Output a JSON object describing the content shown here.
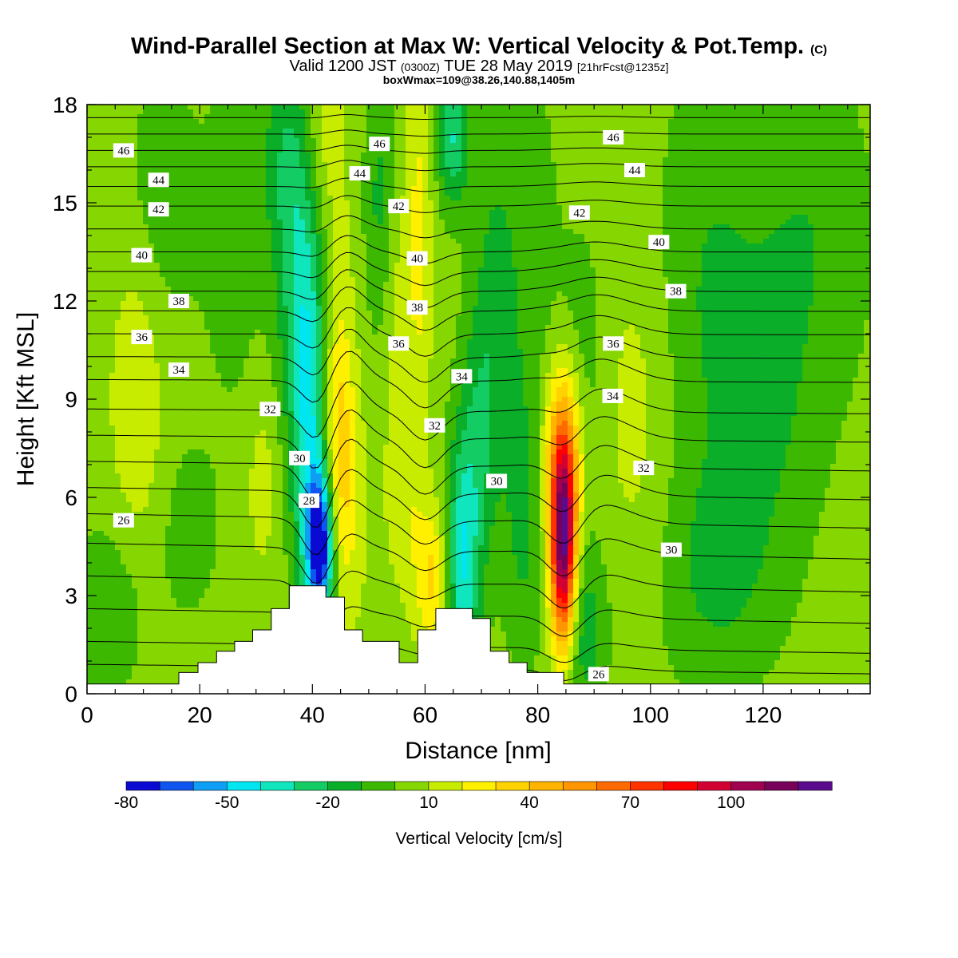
{
  "title": {
    "main": "Wind-Parallel Section at Max W: Vertical Velocity & Pot.Temp.",
    "main_suffix": "(C)",
    "valid_a": "Valid 1200 JST",
    "valid_b": "(0300Z)",
    "valid_c": "TUE 28 May 2019",
    "valid_d": "[21hrFcst@1235z]",
    "box": "boxWmax=109@38.26,140.88,1405m"
  },
  "chart_data": {
    "type": "heatmap",
    "xlabel": "Distance [nm]",
    "ylabel": "Height [Kft MSL]",
    "xlim": [
      0,
      139
    ],
    "ylim": [
      0,
      18
    ],
    "x_ticks": [
      0,
      20,
      40,
      60,
      80,
      100,
      120
    ],
    "y_ticks": [
      0,
      3,
      6,
      9,
      12,
      15,
      18
    ],
    "colorbar": {
      "label": "Vertical Velocity [cm/s]",
      "levels": [
        -80,
        -70,
        -60,
        -50,
        -40,
        -30,
        -20,
        -10,
        0,
        10,
        20,
        30,
        40,
        50,
        60,
        70,
        80,
        90,
        100,
        110,
        120
      ],
      "tick_labels": [
        "-80",
        "-50",
        "-20",
        "10",
        "40",
        "70",
        "100"
      ],
      "tick_values": [
        -80,
        -50,
        -20,
        10,
        40,
        70,
        100
      ],
      "colors": [
        "#0a0ad2",
        "#0f55f0",
        "#0f9ef5",
        "#00e6f0",
        "#10e6be",
        "#14cc64",
        "#0aae28",
        "#3cb800",
        "#86d602",
        "#c8ec00",
        "#fff000",
        "#ffd200",
        "#ffb400",
        "#ff9600",
        "#ff6a00",
        "#ff3200",
        "#ff0000",
        "#d20032",
        "#a00050",
        "#78005a",
        "#5a0a8c"
      ]
    },
    "background_level_cm_s": 5,
    "w_features": [
      {
        "x": 41.5,
        "z": 4.5,
        "w": -78,
        "sx": 1.6,
        "sz": 1.6
      },
      {
        "x": 39.5,
        "z": 7.5,
        "w": -40,
        "sx": 2.2,
        "sz": 4.2
      },
      {
        "x": 37.5,
        "z": 12.5,
        "w": -25,
        "sx": 2.8,
        "sz": 3.5
      },
      {
        "x": 35,
        "z": 16.5,
        "w": -18,
        "sx": 3,
        "sz": 2.5
      },
      {
        "x": 44.5,
        "z": 7.8,
        "w": 22,
        "sx": 2,
        "sz": 2.5
      },
      {
        "x": 46,
        "z": 5.5,
        "w": 14,
        "sx": 2.5,
        "sz": 2.5
      },
      {
        "x": 45,
        "z": 11.5,
        "w": 8,
        "sx": 2,
        "sz": 3
      },
      {
        "x": 42,
        "z": 17,
        "w": 12,
        "sx": 2.5,
        "sz": 2
      },
      {
        "x": 61.5,
        "z": 3.5,
        "w": 28,
        "sx": 2.3,
        "sz": 1.5
      },
      {
        "x": 56.5,
        "z": 6,
        "w": 12,
        "sx": 2.5,
        "sz": 2
      },
      {
        "x": 59,
        "z": 14,
        "w": 18,
        "sx": 1.5,
        "sz": 4
      },
      {
        "x": 55,
        "z": 12,
        "w": 10,
        "sx": 2,
        "sz": 3
      },
      {
        "x": 66.5,
        "z": 3.8,
        "w": -42,
        "sx": 2.1,
        "sz": 2.5
      },
      {
        "x": 69,
        "z": 7.5,
        "w": -20,
        "sx": 2.5,
        "sz": 3
      },
      {
        "x": 65,
        "z": 17,
        "w": -35,
        "sx": 2,
        "sz": 1.5
      },
      {
        "x": 72,
        "z": 11.5,
        "w": -15,
        "sx": 2.5,
        "sz": 4
      },
      {
        "x": 52,
        "z": 15,
        "w": -18,
        "sx": 2,
        "sz": 3
      },
      {
        "x": 78,
        "z": 13,
        "w": -12,
        "sx": 4,
        "sz": 5
      },
      {
        "x": 77.5,
        "z": 5,
        "w": -15,
        "sx": 2.5,
        "sz": 3
      },
      {
        "x": 84.5,
        "z": 4.5,
        "w": 115,
        "sx": 1.6,
        "sz": 2.2
      },
      {
        "x": 84.5,
        "z": 7.5,
        "w": 40,
        "sx": 2.5,
        "sz": 2
      },
      {
        "x": 88,
        "z": 2,
        "w": -22,
        "sx": 3,
        "sz": 2
      },
      {
        "x": 88,
        "z": 10,
        "w": -12,
        "sx": 3,
        "sz": 3
      },
      {
        "x": 110,
        "z": 12,
        "w": -15,
        "sx": 7,
        "sz": 5
      },
      {
        "x": 112,
        "z": 3.5,
        "w": -15,
        "sx": 8,
        "sz": 2.5
      },
      {
        "x": 128,
        "z": 14,
        "w": -14,
        "sx": 8,
        "sz": 4
      },
      {
        "x": 122,
        "z": 8,
        "w": -10,
        "sx": 6,
        "sz": 3
      },
      {
        "x": 9,
        "z": 10,
        "w": 14,
        "sx": 3.5,
        "sz": 4.5
      },
      {
        "x": 12,
        "z": 15,
        "w": -14,
        "sx": 5,
        "sz": 3
      },
      {
        "x": 4,
        "z": 2.5,
        "w": -14,
        "sx": 5,
        "sz": 2
      },
      {
        "x": 18,
        "z": 5,
        "w": -10,
        "sx": 4,
        "sz": 2
      },
      {
        "x": 26,
        "z": 14,
        "w": -10,
        "sx": 4,
        "sz": 4
      },
      {
        "x": 31,
        "z": 6.5,
        "w": 10,
        "sx": 2,
        "sz": 2
      },
      {
        "x": 98,
        "z": 8.5,
        "w": 10,
        "sx": 5,
        "sz": 4
      }
    ],
    "theta_contours": {
      "units": "C",
      "baselines_kft": [
        {
          "theta": 24,
          "z": 0.9
        },
        {
          "theta": 25,
          "z": 1.6
        },
        {
          "theta": 26,
          "z": 2.6
        },
        {
          "theta": 27,
          "z": 3.6
        },
        {
          "theta": 28,
          "z": 4.6
        },
        {
          "theta": 29,
          "z": 5.5
        },
        {
          "theta": 30,
          "z": 6.3
        },
        {
          "theta": 31,
          "z": 7.1
        },
        {
          "theta": 32,
          "z": 7.9
        },
        {
          "theta": 33,
          "z": 8.7
        },
        {
          "theta": 34,
          "z": 9.6
        },
        {
          "theta": 35,
          "z": 10.3
        },
        {
          "theta": 36,
          "z": 11.0
        },
        {
          "theta": 37,
          "z": 11.7
        },
        {
          "theta": 38,
          "z": 12.3
        },
        {
          "theta": 39,
          "z": 12.9
        },
        {
          "theta": 40,
          "z": 13.5
        },
        {
          "theta": 41,
          "z": 14.2
        },
        {
          "theta": 42,
          "z": 14.9
        },
        {
          "theta": 43,
          "z": 15.5
        },
        {
          "theta": 44,
          "z": 16.1
        },
        {
          "theta": 45,
          "z": 16.6
        },
        {
          "theta": 46,
          "z": 17.1
        },
        {
          "theta": 47,
          "z": 17.6
        }
      ],
      "labels": [
        {
          "text": "46",
          "x": 6.5,
          "z": 16.6
        },
        {
          "text": "44",
          "x": 12.7,
          "z": 15.7
        },
        {
          "text": "42",
          "x": 12.7,
          "z": 14.8
        },
        {
          "text": "40",
          "x": 9.7,
          "z": 13.4
        },
        {
          "text": "38",
          "x": 16.3,
          "z": 12.0
        },
        {
          "text": "36",
          "x": 9.7,
          "z": 10.9
        },
        {
          "text": "34",
          "x": 16.3,
          "z": 9.9
        },
        {
          "text": "32",
          "x": 32.5,
          "z": 8.7
        },
        {
          "text": "30",
          "x": 37.7,
          "z": 7.2
        },
        {
          "text": "28",
          "x": 39.4,
          "z": 5.9
        },
        {
          "text": "26",
          "x": 6.5,
          "z": 5.3
        },
        {
          "text": "46",
          "x": 51.9,
          "z": 16.8
        },
        {
          "text": "44",
          "x": 48.4,
          "z": 15.9
        },
        {
          "text": "42",
          "x": 55.3,
          "z": 14.9
        },
        {
          "text": "40",
          "x": 58.6,
          "z": 13.3
        },
        {
          "text": "38",
          "x": 58.6,
          "z": 11.8
        },
        {
          "text": "36",
          "x": 55.3,
          "z": 10.7
        },
        {
          "text": "34",
          "x": 66.5,
          "z": 9.7
        },
        {
          "text": "32",
          "x": 61.7,
          "z": 8.2
        },
        {
          "text": "30",
          "x": 72.7,
          "z": 6.5
        },
        {
          "text": "46",
          "x": 93.4,
          "z": 17.0
        },
        {
          "text": "44",
          "x": 97.2,
          "z": 16.0
        },
        {
          "text": "42",
          "x": 87.4,
          "z": 14.7
        },
        {
          "text": "40",
          "x": 101.5,
          "z": 13.8
        },
        {
          "text": "38",
          "x": 104.5,
          "z": 12.3
        },
        {
          "text": "36",
          "x": 93.4,
          "z": 10.7
        },
        {
          "text": "34",
          "x": 93.3,
          "z": 9.1
        },
        {
          "text": "32",
          "x": 98.8,
          "z": 6.9
        },
        {
          "text": "30",
          "x": 103.7,
          "z": 4.4
        },
        {
          "text": "26",
          "x": 90.8,
          "z": 0.6
        }
      ]
    },
    "terrain_kft": [
      [
        0,
        0.3
      ],
      [
        16.3,
        0.3
      ],
      [
        16.3,
        0.65
      ],
      [
        19.7,
        0.65
      ],
      [
        19.7,
        0.95
      ],
      [
        23,
        0.95
      ],
      [
        23,
        1.3
      ],
      [
        26.2,
        1.3
      ],
      [
        26.2,
        1.6
      ],
      [
        29.4,
        1.6
      ],
      [
        29.4,
        1.95
      ],
      [
        32.7,
        1.95
      ],
      [
        32.7,
        2.6
      ],
      [
        35.9,
        2.6
      ],
      [
        35.9,
        3.3
      ],
      [
        42.4,
        3.3
      ],
      [
        42.4,
        2.95
      ],
      [
        45.7,
        2.95
      ],
      [
        45.7,
        1.95
      ],
      [
        48.9,
        1.95
      ],
      [
        48.9,
        1.6
      ],
      [
        55.4,
        1.6
      ],
      [
        55.4,
        0.95
      ],
      [
        58.7,
        0.95
      ],
      [
        58.7,
        1.95
      ],
      [
        61.9,
        1.95
      ],
      [
        61.9,
        2.6
      ],
      [
        68.4,
        2.6
      ],
      [
        68.4,
        2.3
      ],
      [
        71.6,
        2.3
      ],
      [
        71.6,
        1.3
      ],
      [
        74.9,
        1.3
      ],
      [
        74.9,
        0.95
      ],
      [
        78.1,
        0.95
      ],
      [
        78.1,
        0.65
      ],
      [
        84.6,
        0.65
      ],
      [
        84.6,
        0.3
      ],
      [
        139,
        0.3
      ]
    ]
  }
}
